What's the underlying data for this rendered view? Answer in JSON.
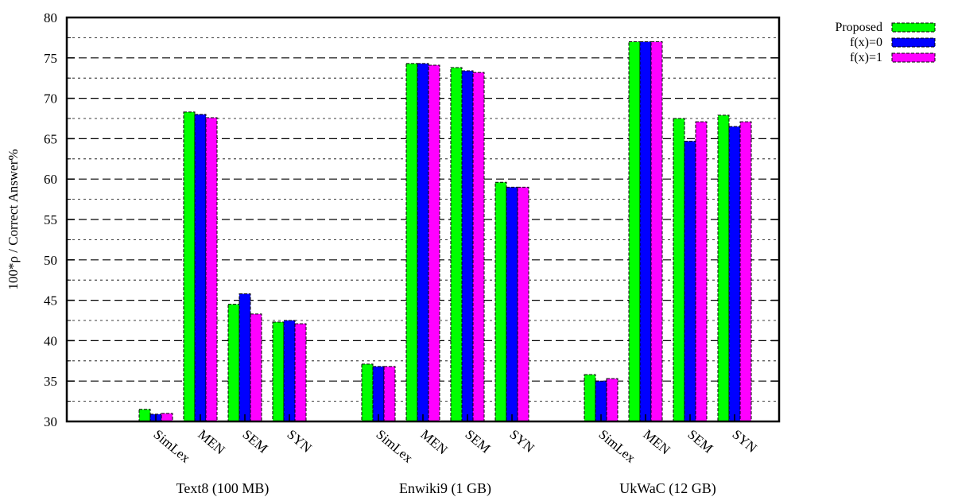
{
  "chart_data": {
    "type": "bar",
    "ylabel": "100*ρ   /   Correct   Answer%",
    "ylim": [
      30,
      80
    ],
    "yticks": [
      30,
      35,
      40,
      45,
      50,
      55,
      60,
      65,
      70,
      75,
      80
    ],
    "grid": "horizontal dashed (major) and dotted (minor)",
    "legend_placement": "top-right (outside plot)",
    "groups": [
      {
        "label": "Text8 (100 MB)",
        "categories": [
          "SimLex",
          "MEN",
          "SEM",
          "SYN"
        ],
        "series_values": [
          [
            31.5,
            68.3,
            44.5,
            42.3
          ],
          [
            30.9,
            68.0,
            45.8,
            42.5
          ],
          [
            31.0,
            67.6,
            43.3,
            42.1
          ]
        ]
      },
      {
        "label": "Enwiki9 (1 GB)",
        "categories": [
          "SimLex",
          "MEN",
          "SEM",
          "SYN"
        ],
        "series_values": [
          [
            37.1,
            74.3,
            73.8,
            59.6
          ],
          [
            36.8,
            74.3,
            73.4,
            59.0
          ],
          [
            36.8,
            74.1,
            73.2,
            59.0
          ]
        ]
      },
      {
        "label": "UkWaC (12 GB)",
        "categories": [
          "SimLex",
          "MEN",
          "SEM",
          "SYN"
        ],
        "series_values": [
          [
            35.8,
            77.0,
            67.5,
            67.9
          ],
          [
            35.0,
            77.0,
            64.7,
            66.5
          ],
          [
            35.3,
            77.0,
            67.1,
            67.1
          ]
        ]
      }
    ],
    "series": [
      {
        "name": "Proposed",
        "color": "#00ff00"
      },
      {
        "name": "f(x)=0",
        "color": "#0000ff"
      },
      {
        "name": "f(x)=1",
        "color": "#ff00ff"
      }
    ]
  }
}
